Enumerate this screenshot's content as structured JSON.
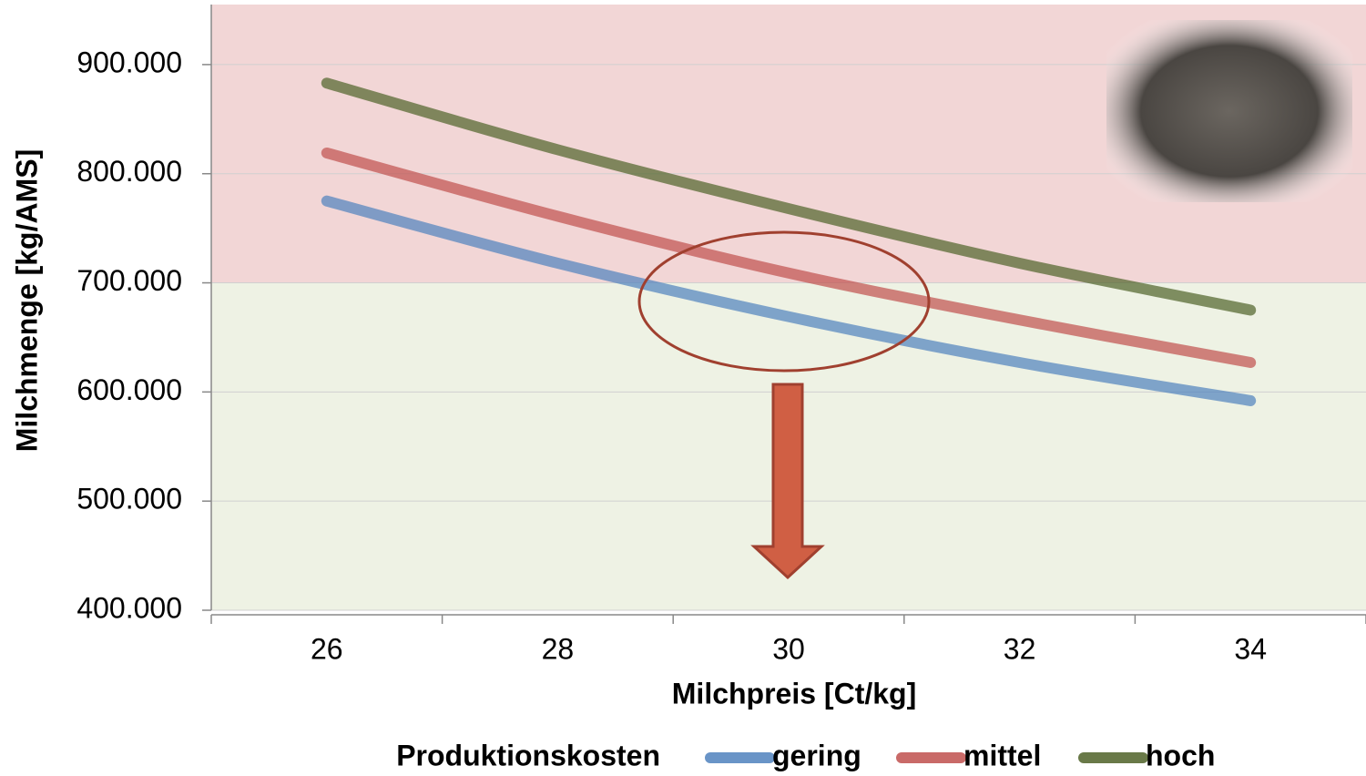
{
  "chart_data": {
    "type": "line",
    "x_label": "Milchpreis [Ct/kg]",
    "y_label": "Milchmenge [kg/AMS]",
    "legend_title": "Produktionskosten",
    "categories": [
      "26",
      "28",
      "30",
      "32",
      "34"
    ],
    "series": [
      {
        "name": "gering",
        "color": "#4f81bd",
        "values": [
          775000,
          718000,
          669000,
          627000,
          592000
        ]
      },
      {
        "name": "mittel",
        "color": "#c0504d",
        "values": [
          819000,
          761000,
          709000,
          666000,
          627000
        ]
      },
      {
        "name": "hoch",
        "color": "#4f6228",
        "values": [
          883000,
          822000,
          768000,
          718000,
          675000
        ]
      }
    ],
    "ylim": [
      400000,
      955000
    ],
    "yticks": [
      {
        "value": 400000,
        "label": "400.000"
      },
      {
        "value": 500000,
        "label": "500.000"
      },
      {
        "value": 600000,
        "label": "600.000"
      },
      {
        "value": 700000,
        "label": "700.000"
      },
      {
        "value": 800000,
        "label": "800.000"
      },
      {
        "value": 900000,
        "label": "900.000"
      }
    ],
    "bands": [
      {
        "from": 700000,
        "to": 955000,
        "color": "#f2d6d6"
      },
      {
        "from": 400000,
        "to": 700000,
        "color": "#eef2e4"
      }
    ],
    "grid": true,
    "legend_position": "bottom"
  }
}
